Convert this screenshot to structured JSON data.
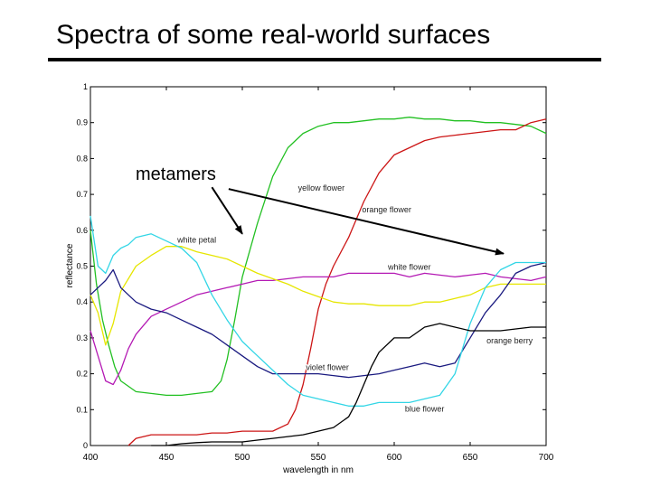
{
  "slide": {
    "title": "Spectra of some real-world surfaces",
    "callout": "metamers"
  },
  "chart_data": {
    "type": "line",
    "xlabel": "wavelength in nm",
    "ylabel": "reflectance",
    "xlim": [
      400,
      700
    ],
    "ylim": [
      0,
      1
    ],
    "x_ticks": [
      400,
      450,
      500,
      550,
      600,
      650,
      700
    ],
    "y_ticks": [
      0,
      0.1,
      0.2,
      0.3,
      0.4,
      0.5,
      0.6,
      0.7,
      0.8,
      0.9,
      1
    ],
    "y_tick_labels": [
      "0",
      "0.1",
      "0.2",
      "0.3",
      "0.4",
      "0.5",
      "0.6",
      "0.7",
      "0.8",
      "0.9",
      "1"
    ],
    "grid": false,
    "series": [
      {
        "name": "yellow flower",
        "color": "#22c022",
        "x": [
          400,
          404,
          408,
          412,
          416,
          420,
          430,
          440,
          450,
          460,
          470,
          480,
          486,
          490,
          495,
          500,
          510,
          520,
          530,
          540,
          550,
          560,
          570,
          580,
          590,
          600,
          610,
          620,
          630,
          640,
          650,
          660,
          670,
          680,
          690,
          700
        ],
        "y": [
          0.6,
          0.45,
          0.35,
          0.28,
          0.22,
          0.18,
          0.15,
          0.145,
          0.14,
          0.14,
          0.145,
          0.15,
          0.18,
          0.24,
          0.35,
          0.47,
          0.62,
          0.75,
          0.83,
          0.87,
          0.89,
          0.9,
          0.9,
          0.905,
          0.91,
          0.91,
          0.915,
          0.91,
          0.91,
          0.905,
          0.905,
          0.9,
          0.9,
          0.895,
          0.89,
          0.87
        ]
      },
      {
        "name": "orange flower",
        "color": "#cc1515",
        "x": [
          425,
          430,
          440,
          450,
          460,
          470,
          480,
          490,
          500,
          510,
          520,
          530,
          535,
          540,
          545,
          550,
          555,
          560,
          570,
          580,
          590,
          600,
          610,
          620,
          630,
          640,
          650,
          660,
          670,
          680,
          690,
          700
        ],
        "y": [
          0.0,
          0.02,
          0.03,
          0.03,
          0.03,
          0.03,
          0.035,
          0.035,
          0.04,
          0.04,
          0.04,
          0.06,
          0.1,
          0.17,
          0.27,
          0.38,
          0.45,
          0.5,
          0.58,
          0.68,
          0.76,
          0.81,
          0.83,
          0.85,
          0.86,
          0.865,
          0.87,
          0.875,
          0.88,
          0.88,
          0.9,
          0.91
        ]
      },
      {
        "name": "white flower",
        "color": "#b41ab4",
        "x": [
          400,
          405,
          410,
          415,
          420,
          425,
          430,
          440,
          450,
          460,
          470,
          480,
          490,
          500,
          510,
          520,
          530,
          540,
          550,
          560,
          570,
          580,
          590,
          600,
          610,
          620,
          630,
          640,
          650,
          660,
          670,
          680,
          690,
          700
        ],
        "y": [
          0.32,
          0.25,
          0.18,
          0.17,
          0.21,
          0.27,
          0.31,
          0.36,
          0.38,
          0.4,
          0.42,
          0.43,
          0.44,
          0.45,
          0.46,
          0.46,
          0.465,
          0.47,
          0.47,
          0.47,
          0.48,
          0.48,
          0.48,
          0.48,
          0.47,
          0.48,
          0.475,
          0.47,
          0.475,
          0.48,
          0.47,
          0.465,
          0.46,
          0.47
        ]
      },
      {
        "name": "white petal",
        "color": "#e6e600",
        "x": [
          400,
          405,
          410,
          415,
          420,
          430,
          440,
          450,
          460,
          470,
          480,
          490,
          500,
          510,
          520,
          530,
          540,
          550,
          560,
          570,
          580,
          590,
          600,
          610,
          620,
          630,
          640,
          650,
          660,
          670,
          680,
          690,
          700
        ],
        "y": [
          0.42,
          0.37,
          0.28,
          0.34,
          0.43,
          0.5,
          0.53,
          0.555,
          0.555,
          0.54,
          0.53,
          0.52,
          0.5,
          0.48,
          0.465,
          0.45,
          0.43,
          0.415,
          0.4,
          0.395,
          0.395,
          0.39,
          0.39,
          0.39,
          0.4,
          0.4,
          0.41,
          0.42,
          0.44,
          0.45,
          0.45,
          0.45,
          0.45
        ]
      },
      {
        "name": "violet flower",
        "color": "#1a1a80",
        "x": [
          400,
          405,
          410,
          415,
          420,
          425,
          430,
          440,
          450,
          460,
          470,
          480,
          490,
          500,
          510,
          520,
          530,
          540,
          550,
          560,
          570,
          580,
          590,
          600,
          610,
          620,
          630,
          640,
          650,
          660,
          670,
          680,
          690,
          700
        ],
        "y": [
          0.42,
          0.44,
          0.46,
          0.49,
          0.44,
          0.42,
          0.4,
          0.38,
          0.37,
          0.35,
          0.33,
          0.31,
          0.28,
          0.25,
          0.22,
          0.2,
          0.2,
          0.2,
          0.2,
          0.195,
          0.19,
          0.195,
          0.2,
          0.21,
          0.22,
          0.23,
          0.22,
          0.23,
          0.3,
          0.37,
          0.42,
          0.48,
          0.5,
          0.51
        ]
      },
      {
        "name": "blue flower",
        "color": "#33d6e6",
        "x": [
          400,
          405,
          410,
          415,
          420,
          425,
          430,
          440,
          450,
          460,
          470,
          480,
          490,
          500,
          510,
          520,
          530,
          540,
          550,
          560,
          570,
          580,
          590,
          600,
          610,
          620,
          630,
          640,
          650,
          660,
          670,
          680,
          690,
          700
        ],
        "y": [
          0.64,
          0.5,
          0.48,
          0.53,
          0.55,
          0.56,
          0.58,
          0.59,
          0.57,
          0.55,
          0.51,
          0.42,
          0.35,
          0.29,
          0.25,
          0.21,
          0.17,
          0.14,
          0.13,
          0.12,
          0.11,
          0.11,
          0.12,
          0.12,
          0.12,
          0.13,
          0.14,
          0.2,
          0.34,
          0.44,
          0.49,
          0.51,
          0.51,
          0.51
        ]
      },
      {
        "name": "orange berry",
        "color": "#000000",
        "x": [
          440,
          450,
          460,
          470,
          480,
          490,
          500,
          510,
          520,
          530,
          540,
          550,
          560,
          570,
          575,
          580,
          585,
          590,
          600,
          610,
          620,
          630,
          640,
          650,
          660,
          670,
          680,
          690,
          700
        ],
        "y": [
          0.0,
          0.0,
          0.005,
          0.008,
          0.01,
          0.01,
          0.01,
          0.015,
          0.02,
          0.025,
          0.03,
          0.04,
          0.05,
          0.08,
          0.12,
          0.17,
          0.22,
          0.26,
          0.3,
          0.3,
          0.33,
          0.34,
          0.33,
          0.32,
          0.32,
          0.32,
          0.325,
          0.33,
          0.33
        ]
      }
    ],
    "curve_labels": [
      {
        "text": "yellow flower",
        "series": "yellow flower",
        "x": 552,
        "y": 0.71
      },
      {
        "text": "orange flower",
        "series": "orange flower",
        "x": 595,
        "y": 0.65
      },
      {
        "text": "white petal",
        "series": "white petal",
        "x": 470,
        "y": 0.565
      },
      {
        "text": "white flower",
        "series": "white flower",
        "x": 610,
        "y": 0.49
      },
      {
        "text": "orange berry",
        "series": "orange berry",
        "x": 676,
        "y": 0.285
      },
      {
        "text": "violet flower",
        "series": "violet flower",
        "x": 556,
        "y": 0.21
      },
      {
        "text": "blue flower",
        "series": "blue flower",
        "x": 620,
        "y": 0.095
      }
    ],
    "callout_arrows": [
      {
        "from": [
          480,
          0.72
        ],
        "to": [
          500,
          0.59
        ]
      },
      {
        "from": [
          491,
          0.715
        ],
        "to": [
          672,
          0.535
        ]
      }
    ]
  }
}
